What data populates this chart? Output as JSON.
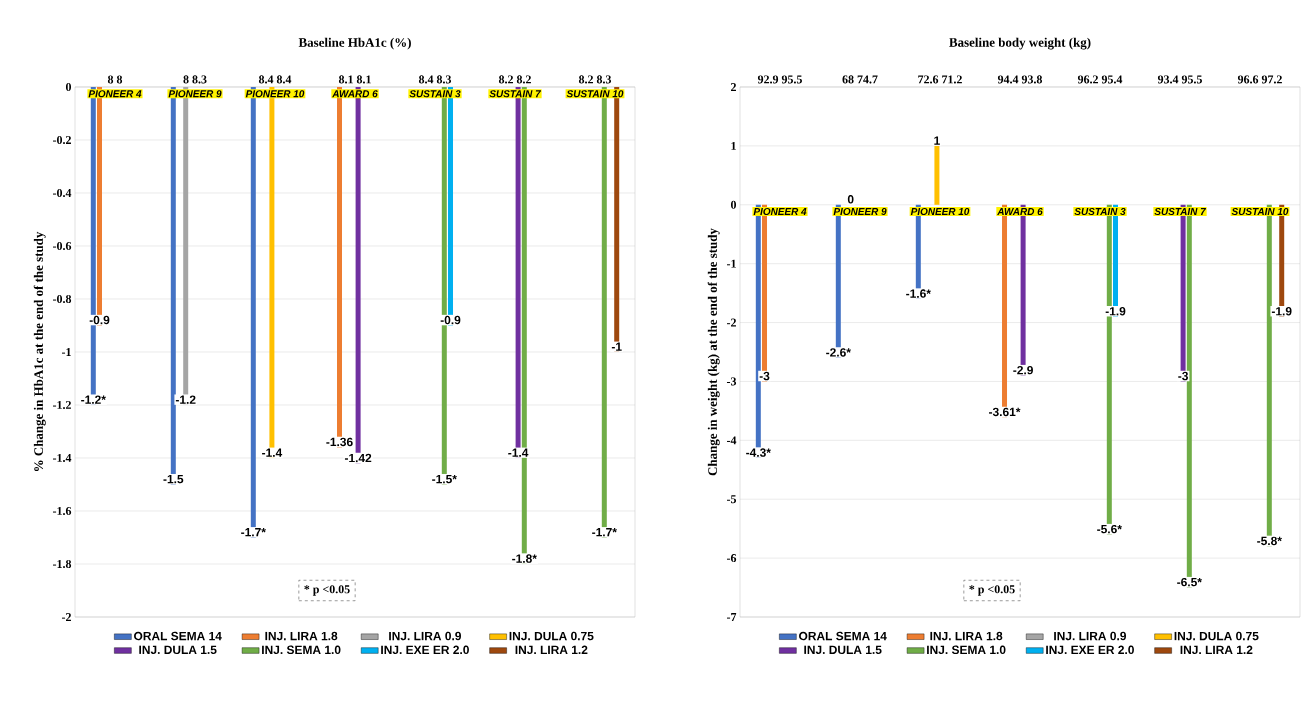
{
  "chart_data": [
    {
      "type": "bar",
      "title": "Baseline HbA1c (%)",
      "ylabel": "% Change in HbA1c at the end of the study",
      "categories": [
        "PIONEER 4",
        "PIONEER 9",
        "PIONEER 10",
        "AWARD 6",
        "SUSTAIN 3",
        "SUSTAIN 7",
        "SUSTAIN 10"
      ],
      "series": [
        {
          "name": "ORAL SEMA 14",
          "color": "#4472c4",
          "values": [
            -1.2,
            -1.5,
            -1.7,
            null,
            null,
            null,
            null
          ],
          "value_labels": [
            "-1.2*",
            "-1.5",
            "-1.7*",
            null,
            null,
            null,
            null
          ]
        },
        {
          "name": "INJ. LIRA 1.8",
          "color": "#ed7d31",
          "values": [
            -0.9,
            null,
            null,
            -1.36,
            null,
            null,
            null
          ],
          "value_labels": [
            "-0.9",
            null,
            null,
            "-1.36",
            null,
            null,
            null
          ]
        },
        {
          "name": "INJ. LIRA 0.9",
          "color": "#a5a5a5",
          "values": [
            null,
            -1.2,
            null,
            null,
            null,
            null,
            null
          ],
          "value_labels": [
            null,
            "-1.2",
            null,
            null,
            null,
            null,
            null
          ]
        },
        {
          "name": "INJ. DULA 0.75",
          "color": "#ffc000",
          "values": [
            null,
            null,
            -1.4,
            null,
            null,
            null,
            null
          ],
          "value_labels": [
            null,
            null,
            "-1.4",
            null,
            null,
            null,
            null
          ]
        },
        {
          "name": "INJ. DULA 1.5",
          "color": "#7030a0",
          "values": [
            null,
            null,
            null,
            -1.42,
            null,
            -1.4,
            null
          ],
          "value_labels": [
            null,
            null,
            null,
            "-1.42",
            null,
            "-1.4",
            null
          ]
        },
        {
          "name": "INJ. SEMA 1.0",
          "color": "#70ad47",
          "values": [
            null,
            null,
            null,
            null,
            -1.5,
            -1.8,
            -1.7
          ],
          "value_labels": [
            null,
            null,
            null,
            null,
            "-1.5*",
            "-1.8*",
            "-1.7*"
          ]
        },
        {
          "name": "INJ. EXE ER 2.0",
          "color": "#00b0f0",
          "values": [
            null,
            null,
            null,
            null,
            -0.9,
            null,
            null
          ],
          "value_labels": [
            null,
            null,
            null,
            null,
            "-0.9",
            null,
            null
          ]
        },
        {
          "name": "INJ. LIRA 1.2",
          "color": "#9e480e",
          "values": [
            null,
            null,
            null,
            null,
            null,
            null,
            -1
          ],
          "value_labels": [
            null,
            null,
            null,
            null,
            null,
            null,
            "-1"
          ]
        }
      ],
      "ylim": [
        -2,
        0
      ],
      "yticks": [
        0,
        -0.2,
        -0.4,
        -0.6,
        -0.8,
        -1,
        -1.2,
        -1.4,
        -1.6,
        -1.8,
        -2
      ],
      "grid": true,
      "legend": "bottom",
      "annotations": [
        "8   8",
        "8   8.3",
        "8.4   8.4",
        "8.1   8.1",
        "8.4   8.3",
        "8.2   8.2",
        "8.2   8.3",
        "* p <0.05"
      ]
    },
    {
      "type": "bar",
      "title": "Baseline body weight (kg)",
      "ylabel": "Change in weight (kg) at the end of the study",
      "categories": [
        "PIONEER 4",
        "PIONEER 9",
        "PIONEER 10",
        "AWARD 6",
        "SUSTAIN 3",
        "SUSTAIN 7",
        "SUSTAIN 10"
      ],
      "series": [
        {
          "name": "ORAL SEMA 14",
          "color": "#4472c4",
          "values": [
            -4.3,
            -2.6,
            -1.6,
            null,
            null,
            null,
            null
          ],
          "value_labels": [
            "-4.3*",
            "-2.6*",
            "-1.6*",
            null,
            null,
            null,
            null
          ]
        },
        {
          "name": "INJ. LIRA 1.8",
          "color": "#ed7d31",
          "values": [
            -3,
            null,
            null,
            -3.61,
            null,
            null,
            null
          ],
          "value_labels": [
            "-3",
            null,
            null,
            "-3.61*",
            null,
            null,
            null
          ]
        },
        {
          "name": "INJ. LIRA 0.9",
          "color": "#a5a5a5",
          "values": [
            null,
            0,
            null,
            null,
            null,
            null,
            null
          ],
          "value_labels": [
            null,
            "0",
            null,
            null,
            null,
            null,
            null
          ]
        },
        {
          "name": "INJ. DULA 0.75",
          "color": "#ffc000",
          "values": [
            null,
            null,
            1,
            null,
            null,
            null,
            null
          ],
          "value_labels": [
            null,
            null,
            "1",
            null,
            null,
            null,
            null
          ]
        },
        {
          "name": "INJ. DULA 1.5",
          "color": "#7030a0",
          "values": [
            null,
            null,
            null,
            -2.9,
            null,
            -3,
            null
          ],
          "value_labels": [
            null,
            null,
            null,
            "-2.9",
            null,
            "-3",
            null
          ]
        },
        {
          "name": "INJ. SEMA 1.0",
          "color": "#70ad47",
          "values": [
            null,
            null,
            null,
            null,
            -5.6,
            -6.5,
            -5.8
          ],
          "value_labels": [
            null,
            null,
            null,
            null,
            "-5.6*",
            "-6.5*",
            "-5.8*"
          ]
        },
        {
          "name": "INJ. EXE ER 2.0",
          "color": "#00b0f0",
          "values": [
            null,
            null,
            null,
            null,
            -1.9,
            null,
            null
          ],
          "value_labels": [
            null,
            null,
            null,
            null,
            "-1.9",
            null,
            null
          ]
        },
        {
          "name": "INJ. LIRA 1.2",
          "color": "#9e480e",
          "values": [
            null,
            null,
            null,
            null,
            null,
            null,
            -1.9
          ],
          "value_labels": [
            null,
            null,
            null,
            null,
            null,
            null,
            "-1.9"
          ]
        }
      ],
      "ylim": [
        -7,
        2
      ],
      "yticks": [
        2,
        1,
        0,
        -1,
        -2,
        -3,
        -4,
        -5,
        -6,
        -7
      ],
      "grid": true,
      "legend": "bottom",
      "annotations": [
        "92.9   95.5",
        "68   74.7",
        "72.6   71.2",
        "94.4   93.8",
        "96.2   95.4",
        "93.4   95.5",
        "96.6   97.2",
        "* p <0.05"
      ]
    }
  ]
}
